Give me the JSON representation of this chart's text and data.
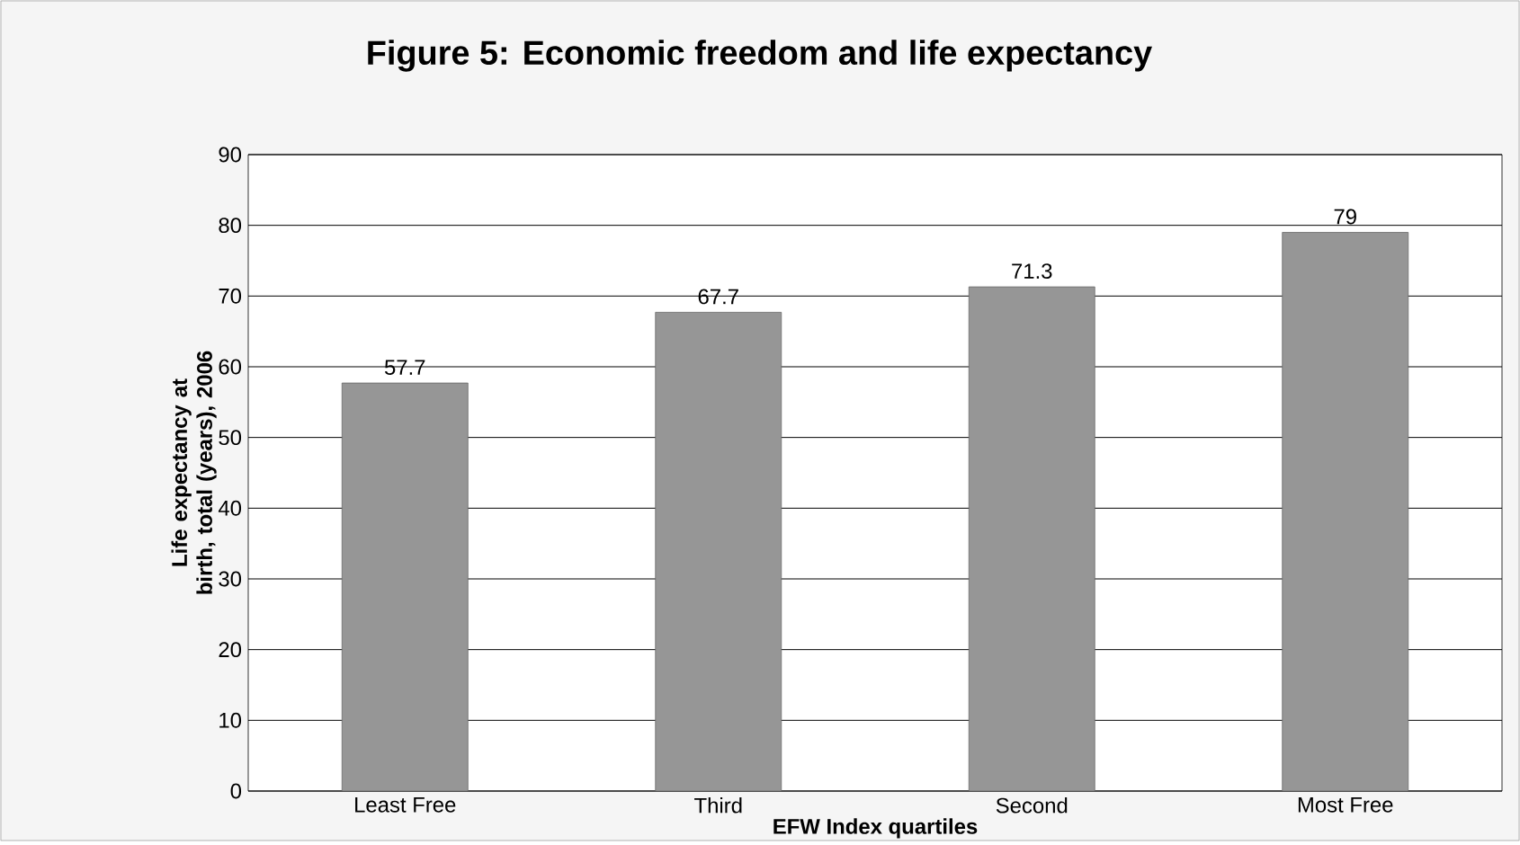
{
  "chart_data": {
    "type": "bar",
    "title": "Figure 5: Economic freedom and life expectancy",
    "xlabel": "EFW Index quartiles",
    "ylabel": "Life expectancy at birth, total (years), 2006",
    "categories": [
      "Least Free",
      "Third",
      "Second",
      "Most Free"
    ],
    "values": [
      57.7,
      67.7,
      71.3,
      79
    ],
    "color": "#969696",
    "ylim": [
      0,
      90
    ],
    "yticks": [
      0,
      10,
      20,
      30,
      40,
      50,
      60,
      70,
      80,
      90
    ],
    "grid": "y",
    "data_labels": true
  }
}
